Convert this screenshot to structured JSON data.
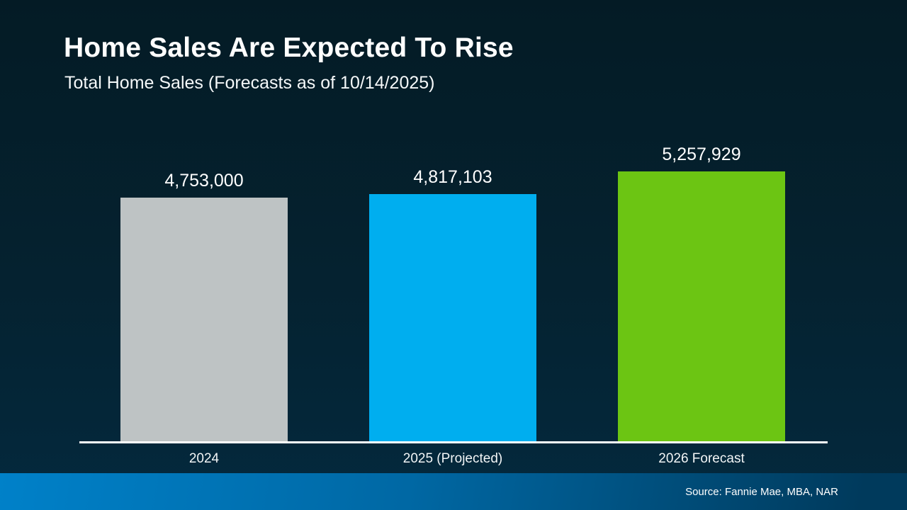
{
  "header": {
    "title": "Home Sales Are Expected To Rise",
    "subtitle": "Total Home Sales (Forecasts as of 10/14/2025)"
  },
  "chart_data": {
    "type": "bar",
    "title": "Home Sales Are Expected To Rise",
    "subtitle": "Total Home Sales (Forecasts as of 10/14/2025)",
    "categories": [
      "2024",
      "2025 (Projected)",
      "2026 Forecast"
    ],
    "values": [
      4753000,
      4817103,
      5257929
    ],
    "value_labels": [
      "4,753,000",
      "4,817,103",
      "5,257,929"
    ],
    "bar_colors": [
      "#bec3c4",
      "#00aeef",
      "#6cc513"
    ],
    "xlabel": "",
    "ylabel": "",
    "ylim": [
      0,
      5500000
    ],
    "grid": false,
    "legend": false,
    "value_labels_position": "above-bars",
    "baseline_color": "#ffffff"
  },
  "footer": {
    "source": "Source: Fannie Mae, MBA, NAR"
  },
  "colors": {
    "background_top": "#041b25",
    "background_bottom": "#03293e",
    "footer_gradient_left": "#0081c9",
    "footer_gradient_right": "#003a5c",
    "text": "#ffffff",
    "axis_line": "#ffffff"
  }
}
